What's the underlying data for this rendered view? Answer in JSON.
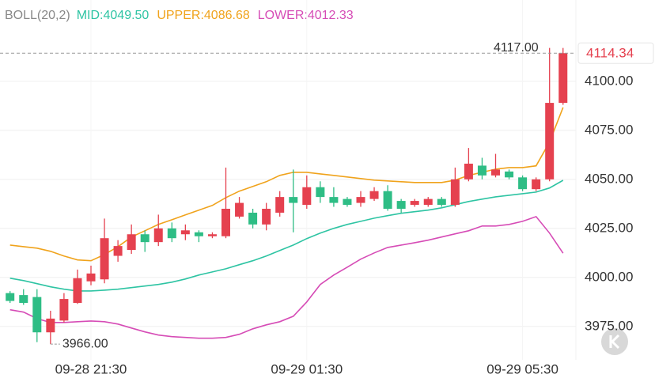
{
  "chart_data": {
    "type": "candlestick",
    "indicator": "BOLL(20,2)",
    "readout": [
      "MID:4049.50",
      "UPPER:4086.68",
      "LOWER:4012.33"
    ],
    "categories": [
      null,
      null,
      null,
      null,
      null,
      null,
      "09-28 21:30",
      null,
      null,
      null,
      null,
      null,
      null,
      null,
      null,
      null,
      null,
      null,
      null,
      null,
      null,
      null,
      "09-29 01:30",
      null,
      null,
      null,
      null,
      null,
      null,
      null,
      null,
      null,
      null,
      null,
      null,
      null,
      null,
      null,
      "09-29 05:30",
      null,
      null,
      null
    ],
    "open": [
      3992,
      3991,
      3990,
      3972,
      3978,
      3987,
      3998,
      3999,
      4011,
      4014,
      4022,
      4018,
      4025,
      4022,
      4023,
      4021,
      4021,
      4031,
      4033,
      4027,
      4033,
      4041,
      4037,
      4046,
      4041,
      4040,
      4038,
      4040,
      4044,
      4039,
      4037,
      4037,
      4040,
      4037,
      4050,
      4057,
      4052,
      4054,
      4051,
      4045,
      4050,
      4089
    ],
    "high": [
      3993,
      3994,
      3994,
      3983,
      3992,
      4004,
      4006,
      4030,
      4019,
      4027,
      4024,
      4032,
      4028,
      4027,
      4024,
      4023,
      4056,
      4041,
      4035,
      4038,
      4044,
      4055,
      4052,
      4049,
      4046,
      4041,
      4044,
      4046,
      4047,
      4040,
      4040,
      4041,
      4041,
      4056,
      4066,
      4061,
      4063,
      4055,
      4052,
      4051,
      4117,
      4117
    ],
    "low": [
      3987,
      3986,
      3967,
      3966,
      3977,
      3986.5,
      3996,
      3997,
      4008,
      4012,
      4013,
      4016,
      4018,
      4019,
      4018,
      4020,
      4020,
      4030,
      4025,
      4024,
      4031,
      4023,
      4035,
      4038,
      4036,
      4036,
      4036,
      4039,
      4034,
      4033,
      4036,
      4036,
      4036,
      4036,
      4049,
      4050,
      4051,
      4050,
      4044,
      4044,
      4049,
      4088
    ],
    "close": [
      3988,
      3987,
      3972,
      3979,
      3989,
      3999.6,
      4002,
      4020,
      4016,
      4022,
      4018,
      4025,
      4020,
      4024,
      4021,
      4022,
      4035,
      4038,
      4027,
      4035,
      4041,
      4038,
      4046,
      4041,
      4038,
      4037,
      4041,
      4044,
      4035,
      4035,
      4039,
      4040,
      4037,
      4050,
      4058,
      4052,
      4055,
      4051,
      4045,
      4050,
      4089,
      4114.34
    ],
    "up_color": "#e5414f",
    "down_color": "#2ebd85",
    "series": [
      {
        "name": "MID",
        "color": "#2ec4a3",
        "values": [
          3999.6,
          3998.4,
          3996.8,
          3995.2,
          3994.0,
          3993.1,
          3993.1,
          3993.5,
          3994.0,
          3994.8,
          3995.6,
          3996.4,
          3997.6,
          3999.2,
          4001.2,
          4002.8,
          4004.4,
          4006.5,
          4008.5,
          4010.9,
          4013.7,
          4016.5,
          4019.8,
          4022.6,
          4025.0,
          4027.0,
          4028.6,
          4030.2,
          4031.5,
          4032.7,
          4033.5,
          4034.3,
          4035.5,
          4037.1,
          4038.7,
          4039.9,
          4041.1,
          4041.9,
          4042.7,
          4043.5,
          4045.6,
          4049.5
        ]
      },
      {
        "name": "UPPER",
        "color": "#f0a31c",
        "values": [
          4016.5,
          4015.7,
          4014.9,
          4013.3,
          4010.9,
          4008.9,
          4008.5,
          4011.7,
          4015.7,
          4020.6,
          4023.8,
          4027.0,
          4029.4,
          4031.9,
          4034.3,
          4036.7,
          4040.7,
          4044.0,
          4046.4,
          4048.8,
          4052.0,
          4053.6,
          4053.6,
          4052.8,
          4052.0,
          4051.2,
          4050.4,
          4049.6,
          4049.2,
          4048.8,
          4048.4,
          4048.4,
          4048.4,
          4049.6,
          4052.0,
          4053.6,
          4055.2,
          4056.0,
          4056.0,
          4056.9,
          4069.0,
          4086.68
        ]
      },
      {
        "name": "LOWER",
        "color": "#d64cb6",
        "values": [
          3983.5,
          3982.3,
          3979.0,
          3977.0,
          3977.0,
          3977.4,
          3977.8,
          3977.4,
          3976.2,
          3974.2,
          3972.2,
          3970.6,
          3969.8,
          3969.4,
          3969.0,
          3969.0,
          3969.4,
          3971.0,
          3973.8,
          3975.8,
          3977.4,
          3980.2,
          3987.5,
          3996.4,
          4001.2,
          4005.2,
          4009.3,
          4012.5,
          4015.3,
          4016.5,
          4017.7,
          4019.0,
          4020.6,
          4022.2,
          4023.8,
          4026.2,
          4026.2,
          4027.0,
          4028.6,
          4031.0,
          4022.6,
          4012.33
        ]
      }
    ],
    "ylim": [
      3960,
      4135
    ],
    "yticks": [
      {
        "value": 3975,
        "label": "3975.00"
      },
      {
        "value": 4000,
        "label": "4000.00"
      },
      {
        "value": 4025,
        "label": "4025.00"
      },
      {
        "value": 4050,
        "label": "4050.00"
      },
      {
        "value": 4075,
        "label": "4075.00"
      },
      {
        "value": 4100,
        "label": "4100.00"
      }
    ],
    "grid": true,
    "high_marker": {
      "value": 4117,
      "label": "4117.00"
    },
    "low_marker": {
      "value": 3966,
      "label": "3966.00"
    },
    "last_price": {
      "value": 4114.34,
      "label": "4114.34"
    }
  }
}
